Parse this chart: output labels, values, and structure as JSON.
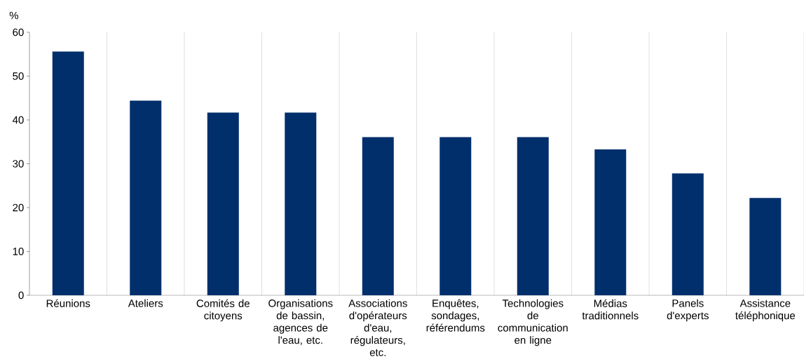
{
  "chart_data": {
    "type": "bar",
    "ylabel": "%",
    "categories": [
      "Réunions",
      "Ateliers",
      "Comités de citoyens",
      "Organisations de bassin, agences de l'eau, etc.",
      "Associations d'opérateurs d'eau, régulateurs, etc.",
      "Enquêtes, sondages, référendums",
      "Technologies de communication en ligne",
      "Médias traditionnels",
      "Panels d'experts",
      "Assistance téléphonique"
    ],
    "values": [
      55.6,
      44.4,
      41.7,
      41.7,
      36.1,
      36.1,
      36.1,
      33.3,
      27.8,
      22.2
    ],
    "color": "#002f6c",
    "ylim": [
      0,
      60
    ],
    "yticks": [
      0,
      10,
      20,
      30,
      40,
      50,
      60
    ],
    "grid": "x"
  }
}
